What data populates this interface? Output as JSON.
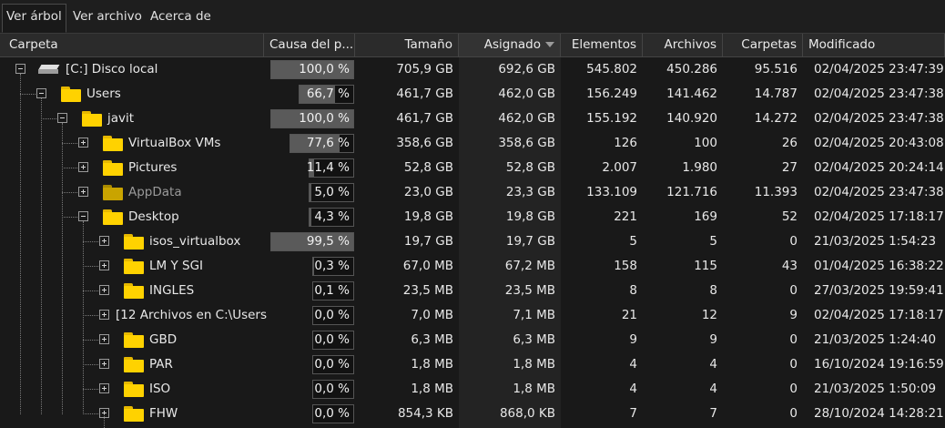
{
  "tabs": [
    "Ver árbol",
    "Ver archivo",
    "Acerca de"
  ],
  "columns": {
    "carpeta": "Carpeta",
    "causa": "Causa del p...",
    "tamano": "Tamaño",
    "asignado": "Asignado",
    "elementos": "Elementos",
    "archivos": "Archivos",
    "carpetas": "Carpetas",
    "modificado": "Modificado"
  },
  "rows": [
    {
      "name": "[C:] Disco local",
      "icon": "drive-icon",
      "level": 0,
      "expander": "minus",
      "cause": "100,0 %",
      "cause_pct": 100,
      "size": "705,9 GB",
      "allocated": "692,6 GB",
      "items": "545.802",
      "files": "450.286",
      "folders": "95.516",
      "modified": "02/04/2025 23:47:39"
    },
    {
      "name": "Users",
      "icon": "folder-icon",
      "level": 1,
      "expander": "minus",
      "cause": "66,7 %",
      "cause_pct": 66.7,
      "size": "461,7 GB",
      "allocated": "462,0 GB",
      "items": "156.249",
      "files": "141.462",
      "folders": "14.787",
      "modified": "02/04/2025 23:47:38"
    },
    {
      "name": "javit",
      "icon": "folder-icon",
      "level": 2,
      "expander": "minus",
      "cause": "100,0 %",
      "cause_pct": 100,
      "size": "461,7 GB",
      "allocated": "462,0 GB",
      "items": "155.192",
      "files": "140.920",
      "folders": "14.272",
      "modified": "02/04/2025 23:47:38"
    },
    {
      "name": "VirtualBox VMs",
      "icon": "folder-icon",
      "level": 3,
      "expander": "plus",
      "cause": "77,6 %",
      "cause_pct": 77.6,
      "size": "358,6 GB",
      "allocated": "358,6 GB",
      "items": "126",
      "files": "100",
      "folders": "26",
      "modified": "02/04/2025 20:43:08"
    },
    {
      "name": "Pictures",
      "icon": "folder-icon",
      "level": 3,
      "expander": "plus",
      "cause": "11,4 %",
      "cause_pct": 11.4,
      "size": "52,8 GB",
      "allocated": "52,8 GB",
      "items": "2.007",
      "files": "1.980",
      "folders": "27",
      "modified": "02/04/2025 20:24:14"
    },
    {
      "name": "AppData",
      "icon": "folder-icon",
      "level": 3,
      "expander": "plus",
      "dim": true,
      "cause": "5,0 %",
      "cause_pct": 5.0,
      "size": "23,0 GB",
      "allocated": "23,3 GB",
      "items": "133.109",
      "files": "121.716",
      "folders": "11.393",
      "modified": "02/04/2025 23:47:38"
    },
    {
      "name": "Desktop",
      "icon": "folder-icon",
      "level": 3,
      "expander": "minus",
      "cause": "4,3 %",
      "cause_pct": 4.3,
      "size": "19,8 GB",
      "allocated": "19,8 GB",
      "items": "221",
      "files": "169",
      "folders": "52",
      "modified": "02/04/2025 17:18:17"
    },
    {
      "name": "isos_virtualbox",
      "icon": "folder-icon",
      "level": 4,
      "expander": "plus",
      "cause": "99,5 %",
      "cause_pct": 99.5,
      "size": "19,7 GB",
      "allocated": "19,7 GB",
      "items": "5",
      "files": "5",
      "folders": "0",
      "modified": "21/03/2025 1:54:23"
    },
    {
      "name": "LM Y SGI",
      "icon": "folder-icon",
      "level": 4,
      "expander": "plus",
      "cause": "0,3 %",
      "cause_pct": 0.3,
      "size": "67,0 MB",
      "allocated": "67,2 MB",
      "items": "158",
      "files": "115",
      "folders": "43",
      "modified": "01/04/2025 16:38:22"
    },
    {
      "name": "INGLES",
      "icon": "folder-icon",
      "level": 4,
      "expander": "plus",
      "cause": "0,1 %",
      "cause_pct": 0.1,
      "size": "23,5 MB",
      "allocated": "23,5 MB",
      "items": "8",
      "files": "8",
      "folders": "0",
      "modified": "27/03/2025 19:59:41"
    },
    {
      "name": "[12 Archivos en C:\\Users",
      "icon": "",
      "level": 4,
      "expander": "plus",
      "cause": "0,0 %",
      "cause_pct": 0,
      "size": "7,0 MB",
      "allocated": "7,1 MB",
      "items": "21",
      "files": "12",
      "folders": "9",
      "modified": "02/04/2025 17:18:17"
    },
    {
      "name": "GBD",
      "icon": "folder-icon",
      "level": 4,
      "expander": "plus",
      "cause": "0,0 %",
      "cause_pct": 0,
      "size": "6,3 MB",
      "allocated": "6,3 MB",
      "items": "9",
      "files": "9",
      "folders": "0",
      "modified": "21/03/2025 1:24:40"
    },
    {
      "name": "PAR",
      "icon": "folder-icon",
      "level": 4,
      "expander": "plus",
      "cause": "0,0 %",
      "cause_pct": 0,
      "size": "1,8 MB",
      "allocated": "1,8 MB",
      "items": "4",
      "files": "4",
      "folders": "0",
      "modified": "16/10/2024 19:16:59"
    },
    {
      "name": "ISO",
      "icon": "folder-icon",
      "level": 4,
      "expander": "plus",
      "cause": "0,0 %",
      "cause_pct": 0,
      "size": "1,8 MB",
      "allocated": "1,8 MB",
      "items": "4",
      "files": "4",
      "folders": "0",
      "modified": "21/03/2025 1:50:09"
    },
    {
      "name": "FHW",
      "icon": "folder-icon",
      "level": 4,
      "expander": "plus",
      "cause": "0,0 %",
      "cause_pct": 0,
      "size": "854,3 KB",
      "allocated": "868,0 KB",
      "items": "7",
      "files": "7",
      "folders": "0",
      "modified": "28/10/2024 14:28:21"
    }
  ]
}
